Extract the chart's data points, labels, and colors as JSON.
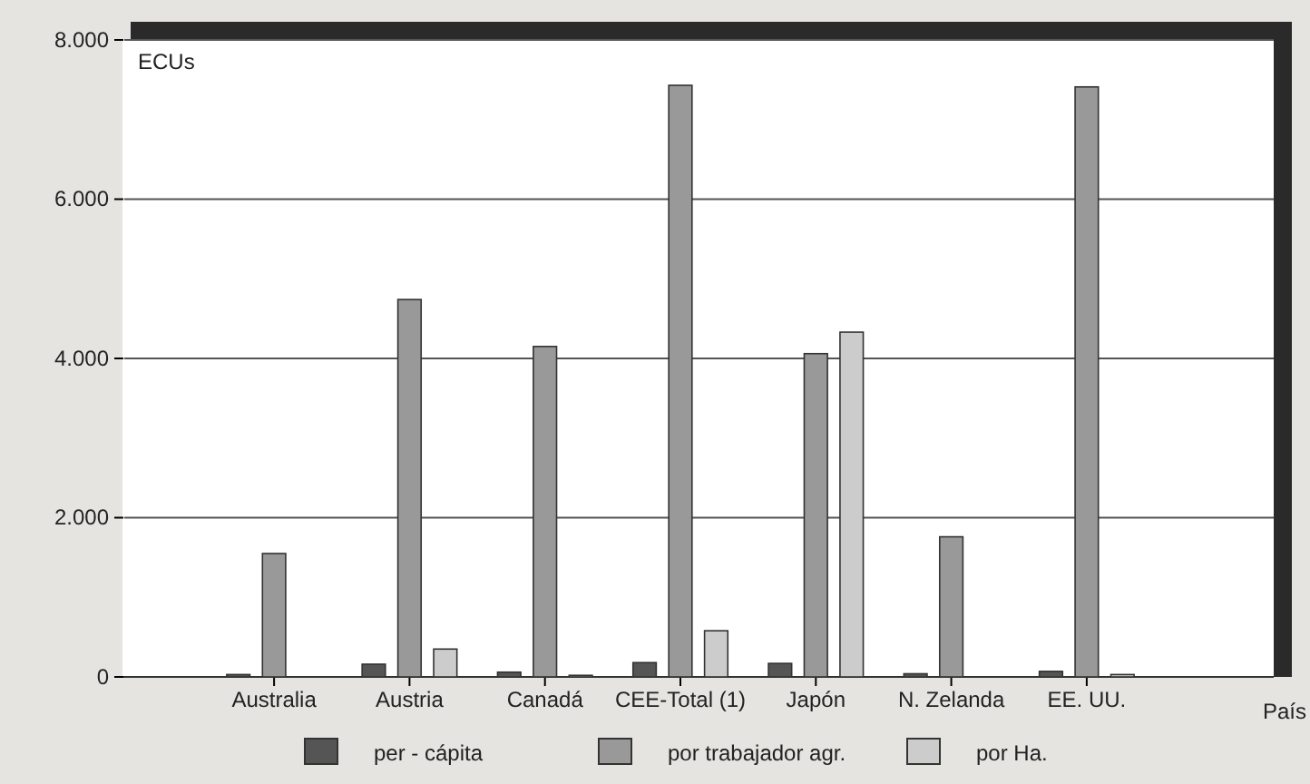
{
  "chart_data": {
    "type": "bar",
    "ylabel": "ECUs",
    "xlabel": "País",
    "categories": [
      "Australia",
      "Austria",
      "Canadá",
      "CEE-Total (1)",
      "Japón",
      "N. Zelanda",
      "EE. UU."
    ],
    "series": [
      {
        "name": "per - cápita",
        "color": "#555555",
        "values": [
          30,
          160,
          60,
          180,
          170,
          40,
          70
        ]
      },
      {
        "name": "por trabajador agr.",
        "color": "#999999",
        "values": [
          1550,
          4740,
          4150,
          7430,
          4060,
          1760,
          7410
        ]
      },
      {
        "name": "por Ha.",
        "color": "#cccccc",
        "values": [
          0,
          350,
          20,
          580,
          4330,
          0,
          30
        ]
      }
    ],
    "ylim": [
      0,
      8000
    ],
    "yticks": [
      {
        "value": 0,
        "label": "0"
      },
      {
        "value": 2000,
        "label": "2.000"
      },
      {
        "value": 4000,
        "label": "4.000"
      },
      {
        "value": 6000,
        "label": "6.000"
      },
      {
        "value": 8000,
        "label": "8.000"
      }
    ],
    "grid": "y",
    "legend": "bottom"
  }
}
